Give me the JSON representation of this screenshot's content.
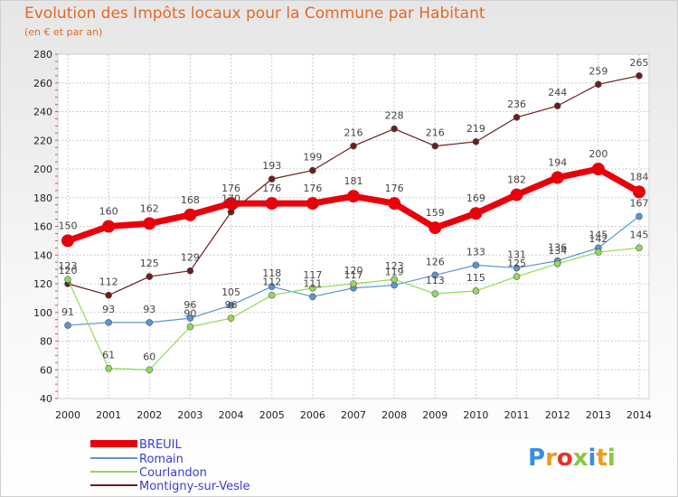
{
  "title": "Evolution des Impôts locaux pour la Commune par Habitant",
  "subtitle": "(en € et par an)",
  "logo": {
    "text": "Proxiti",
    "colors": [
      "#3a8fd8",
      "#f29a1a",
      "#e8302a",
      "#8cc63f",
      "#3a8fd8",
      "#f29a1a",
      "#8cc63f"
    ]
  },
  "chart_data": {
    "type": "line",
    "x": [
      "2000",
      "2001",
      "2002",
      "2003",
      "2004",
      "2005",
      "2006",
      "2007",
      "2008",
      "2009",
      "2010",
      "2011",
      "2012",
      "2013",
      "2014"
    ],
    "ylim": [
      40,
      280
    ],
    "yticks": [
      40,
      60,
      80,
      100,
      120,
      140,
      160,
      180,
      200,
      220,
      240,
      260,
      280
    ],
    "grid": true,
    "legend": "bottom-left",
    "series": [
      {
        "name": "BREUIL",
        "color": "#e8000b",
        "width": 7,
        "marker": 7,
        "values": [
          150,
          160,
          162,
          168,
          176,
          176,
          176,
          181,
          176,
          159,
          169,
          182,
          194,
          200,
          184
        ]
      },
      {
        "name": "Romain",
        "color": "#5b95d3",
        "width": 1.2,
        "marker": 3.5,
        "values": [
          91,
          93,
          93,
          96,
          105,
          118,
          111,
          117,
          119,
          126,
          133,
          131,
          136,
          145,
          167
        ]
      },
      {
        "name": "Courlandon",
        "color": "#92d959",
        "width": 1.2,
        "marker": 3.5,
        "values": [
          123,
          61,
          60,
          90,
          96,
          112,
          117,
          120,
          123,
          113,
          115,
          125,
          134,
          142,
          145
        ]
      },
      {
        "name": "Montigny-sur-Vesle",
        "color": "#6b1d1d",
        "width": 1.2,
        "marker": 3.5,
        "values": [
          120,
          112,
          125,
          129,
          170,
          193,
          199,
          216,
          228,
          216,
          219,
          236,
          244,
          259,
          265
        ]
      }
    ],
    "data_labels": [
      [
        "150",
        "160",
        "162",
        "168",
        "176",
        "176",
        "176",
        "181",
        "176",
        "159",
        "169",
        "182",
        "194",
        "200",
        "184"
      ],
      [
        "91",
        "93",
        "93",
        "96",
        "105",
        "118",
        "111",
        "117",
        "119",
        "126",
        "133",
        "131",
        "136",
        "145",
        "167"
      ],
      [
        "123",
        "61",
        "60",
        "90",
        "96",
        "112",
        "117",
        "120",
        "123",
        "113",
        "115",
        "125",
        "134",
        "142",
        "145"
      ],
      [
        "120",
        "112",
        "125",
        "129",
        "170",
        "193",
        "199",
        "216",
        "228",
        "216",
        "219",
        "236",
        "244",
        "259",
        "265"
      ]
    ]
  }
}
